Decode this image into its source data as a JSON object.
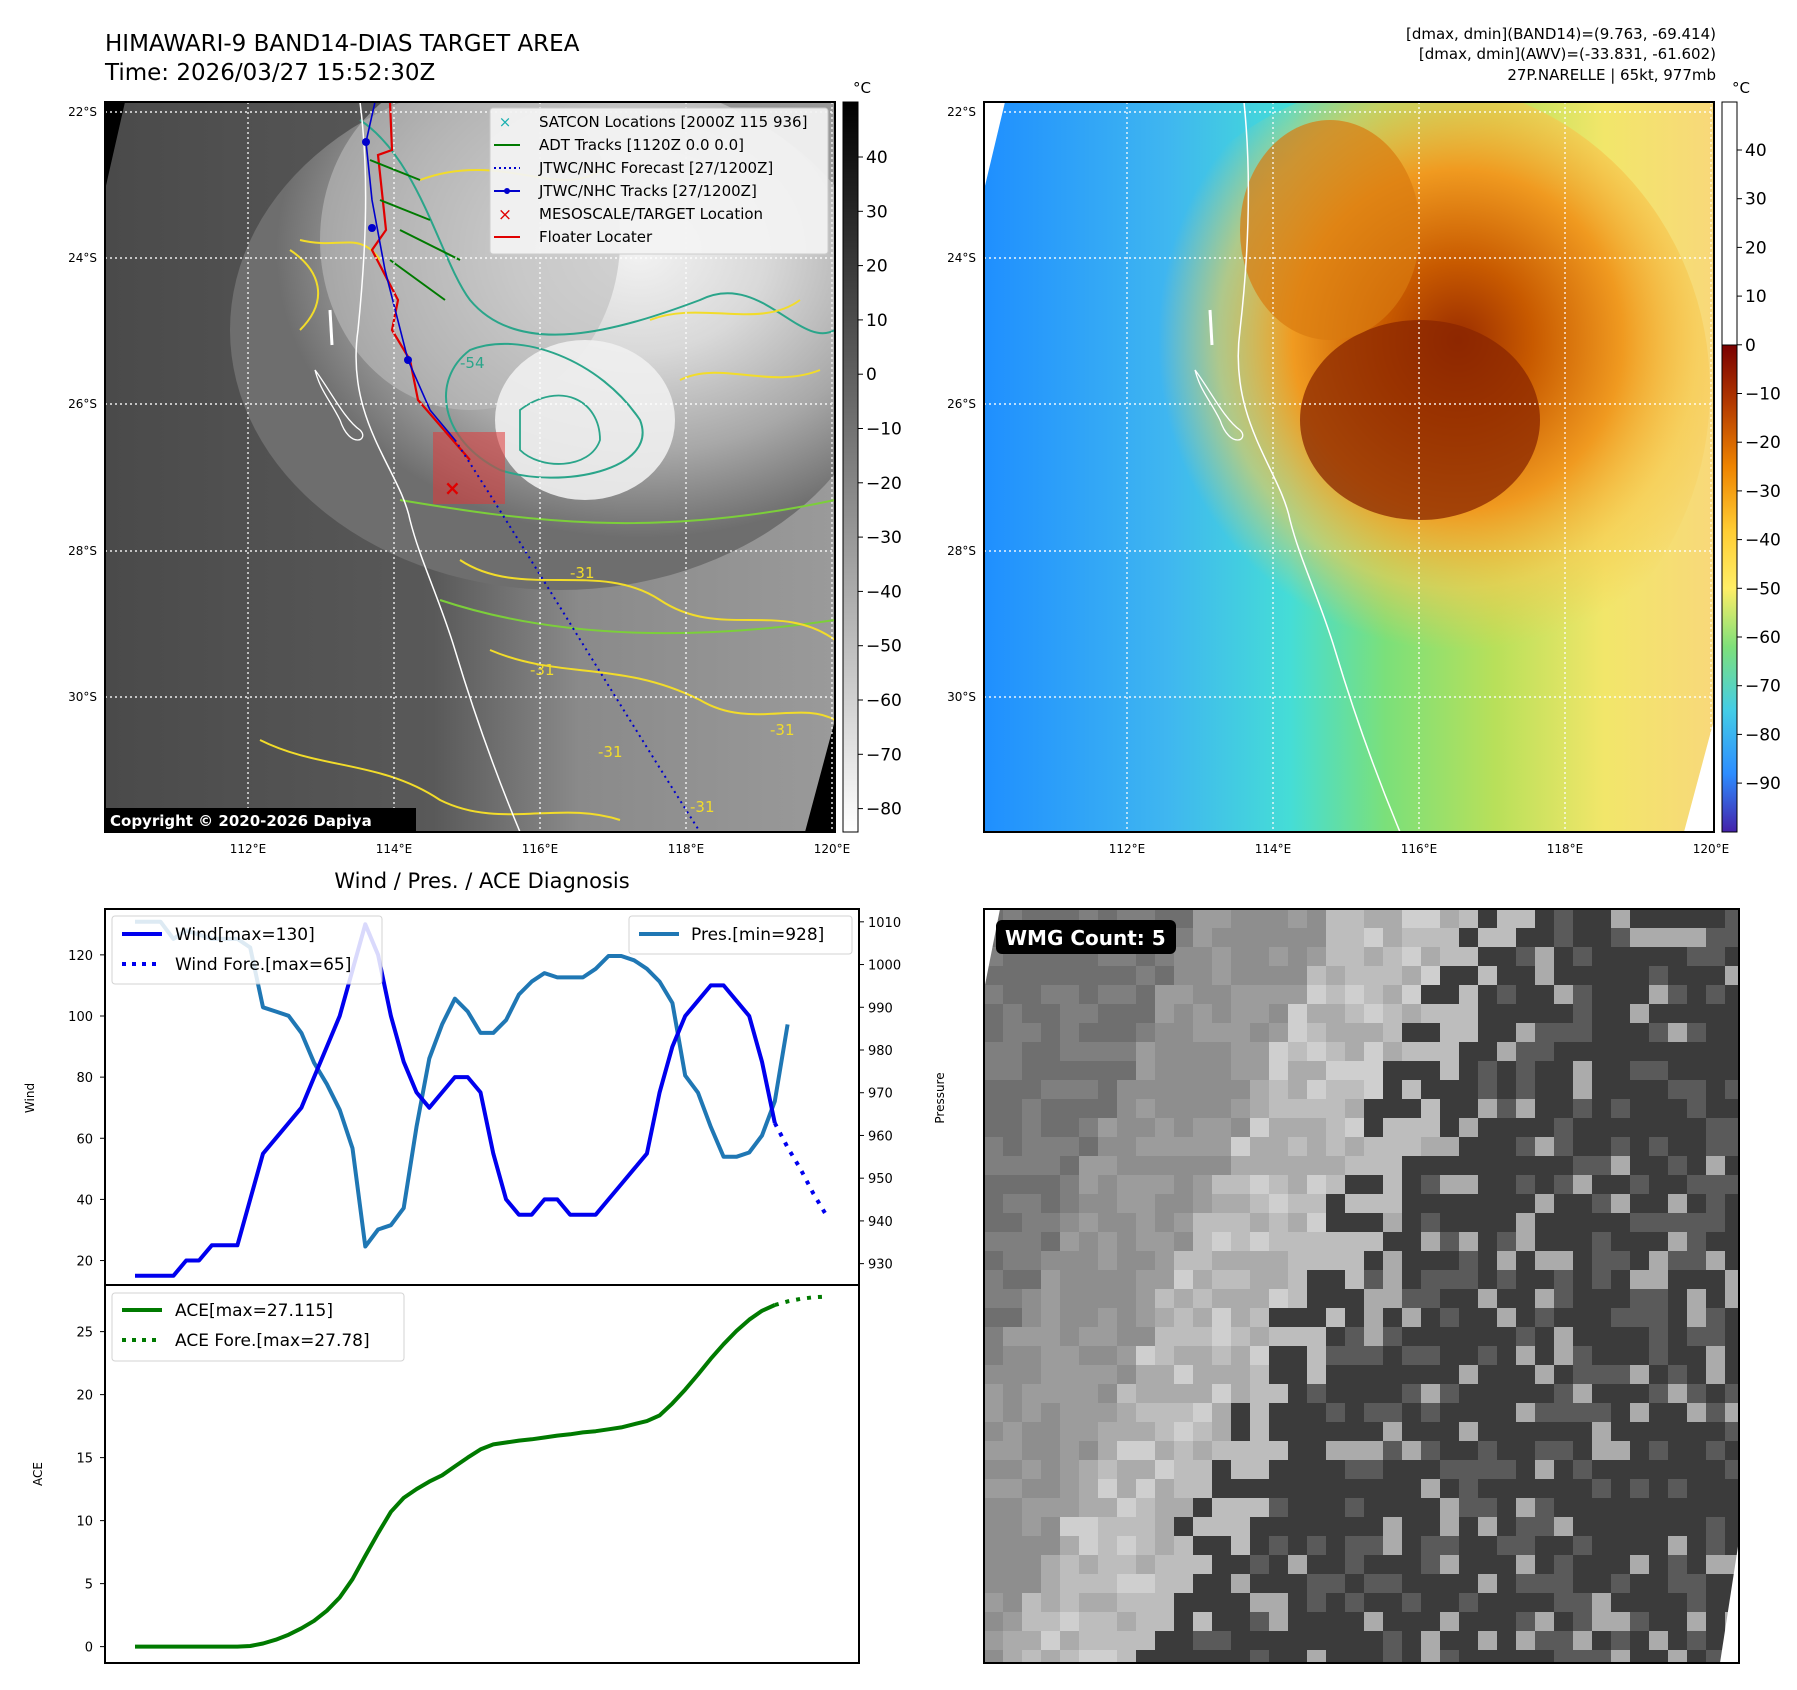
{
  "header": {
    "title": "HIMAWARI-9 BAND14-DIAS TARGET AREA",
    "time": "Time: 2026/03/27 15:52:30Z",
    "dmax_band14": "[dmax, dmin](BAND14)=(9.763, -69.414)",
    "dmax_awv": "[dmax, dmin](AWV)=(-33.831, -61.602)",
    "storm_info": "27P.NARELLE | 65kt, 977mb"
  },
  "map": {
    "lat_labels": [
      "22°S",
      "24°S",
      "26°S",
      "28°S",
      "30°S"
    ],
    "lon_labels": [
      "112°E",
      "114°E",
      "116°E",
      "118°E",
      "120°E"
    ],
    "unit": "°C",
    "copyright": "Copyright © 2020-2026 Dapiya",
    "legend": [
      {
        "label": "SATCON Locations [2000Z 115 936]",
        "color": "#1ab0b0"
      },
      {
        "label": "ADT Tracks [1120Z 0.0 0.0]",
        "color": "#007a00"
      },
      {
        "label": "JTWC/NHC Forecast [27/1200Z]",
        "color": "#0000cc"
      },
      {
        "label": "JTWC/NHC Tracks [27/1200Z]",
        "color": "#0000cc"
      },
      {
        "label": "MESOSCALE/TARGET Location",
        "color": "#e00000"
      },
      {
        "label": "Floater Locater",
        "color": "#e00000"
      }
    ],
    "contour_labels": [
      "-54",
      "-31",
      "-31",
      "-31",
      "-31",
      "-31"
    ]
  },
  "colorbar_gray": {
    "ticks": [
      "40",
      "30",
      "20",
      "10",
      "0",
      "−10",
      "−20",
      "−30",
      "−40",
      "−50",
      "−60",
      "−70",
      "−80"
    ]
  },
  "colorbar_awv": {
    "ticks": [
      "40",
      "30",
      "20",
      "10",
      "0",
      "−10",
      "−20",
      "−30",
      "−40",
      "−50",
      "−60",
      "−70",
      "−80",
      "−90"
    ]
  },
  "wmg": {
    "label": "WMG Count: 5"
  },
  "chart_data": [
    {
      "type": "line",
      "title": "Wind / Pres. / ACE Diagnosis",
      "ylabel": "Wind",
      "ylabel_right": "Pressure",
      "ylim": [
        12,
        135
      ],
      "ylim_right": [
        925,
        1013
      ],
      "yticks": [
        20,
        40,
        60,
        80,
        100,
        120
      ],
      "yticks_right": [
        930,
        940,
        950,
        960,
        970,
        980,
        990,
        1000,
        1010
      ],
      "series": [
        {
          "name": "Wind[max=130]",
          "color": "#0000ee",
          "style": "solid",
          "x": [
            0,
            1,
            2,
            3,
            4,
            5,
            6,
            7,
            8,
            9,
            10,
            11,
            12,
            13,
            14,
            15,
            16,
            17,
            18,
            19,
            20,
            21,
            22,
            23,
            24,
            25,
            26,
            27,
            28,
            29,
            30,
            31,
            32,
            33,
            34,
            35,
            36,
            37,
            38,
            39,
            40,
            41,
            42,
            43,
            44,
            45,
            46,
            47,
            48,
            49,
            50
          ],
          "values": [
            15,
            15,
            15,
            15,
            20,
            20,
            25,
            25,
            25,
            40,
            55,
            60,
            65,
            70,
            80,
            90,
            100,
            115,
            130,
            120,
            100,
            85,
            75,
            70,
            75,
            80,
            80,
            75,
            55,
            40,
            35,
            35,
            40,
            40,
            35,
            35,
            35,
            40,
            45,
            50,
            55,
            75,
            90,
            100,
            105,
            110,
            110,
            105,
            100,
            85,
            65
          ]
        },
        {
          "name": "Wind Fore.[max=65]",
          "color": "#0000ee",
          "style": "dotted",
          "x": [
            50,
            51,
            52,
            53,
            54
          ],
          "values": [
            65,
            57,
            50,
            42,
            35
          ]
        },
        {
          "name": "Pres.[min=928]",
          "color": "#1f77b4",
          "style": "solid",
          "axis": "right",
          "x": [
            0,
            1,
            2,
            3,
            4,
            5,
            6,
            7,
            8,
            9,
            10,
            11,
            12,
            13,
            14,
            15,
            16,
            17,
            18,
            19,
            20,
            21,
            22,
            23,
            24,
            25,
            26,
            27,
            28,
            29,
            30,
            31,
            32,
            33,
            34,
            35,
            36,
            37,
            38,
            39,
            40,
            41,
            42,
            43,
            44,
            45,
            46,
            47,
            48,
            49,
            50,
            51
          ],
          "values": [
            1010,
            1010,
            1010,
            1006,
            1008,
            1007,
            1006,
            1006,
            1006,
            1004,
            990,
            989,
            988,
            984,
            977,
            972,
            966,
            957,
            934,
            938,
            939,
            943,
            962,
            978,
            986,
            992,
            989,
            984,
            984,
            987,
            993,
            996,
            998,
            997,
            997,
            997,
            999,
            1002,
            1002,
            1001,
            999,
            996,
            991,
            974,
            970,
            962,
            955,
            955,
            956,
            960,
            968,
            986
          ]
        }
      ]
    },
    {
      "type": "line",
      "ylabel": "ACE",
      "ylim": [
        -1.3,
        28.7
      ],
      "yticks": [
        0,
        5,
        10,
        15,
        20,
        25
      ],
      "series": [
        {
          "name": "ACE[max=27.115]",
          "color": "#007a00",
          "style": "solid",
          "x": [
            0,
            1,
            2,
            3,
            4,
            5,
            6,
            7,
            8,
            9,
            10,
            11,
            12,
            13,
            14,
            15,
            16,
            17,
            18,
            19,
            20,
            21,
            22,
            23,
            24,
            25,
            26,
            27,
            28,
            29,
            30,
            31,
            32,
            33,
            34,
            35,
            36,
            37,
            38,
            39,
            40,
            41,
            42,
            43,
            44,
            45,
            46,
            47,
            48,
            49,
            50
          ],
          "values": [
            0,
            0,
            0,
            0,
            0,
            0,
            0,
            0,
            0,
            0.05,
            0.25,
            0.55,
            0.95,
            1.45,
            2.05,
            2.85,
            3.9,
            5.35,
            7.2,
            9.0,
            10.7,
            11.8,
            12.5,
            13.1,
            13.6,
            14.3,
            15.0,
            15.65,
            16.05,
            16.2,
            16.35,
            16.45,
            16.6,
            16.75,
            16.85,
            17.0,
            17.1,
            17.25,
            17.4,
            17.65,
            17.9,
            18.35,
            19.3,
            20.4,
            21.6,
            22.85,
            24.0,
            25.05,
            25.95,
            26.65,
            27.115
          ]
        },
        {
          "name": "ACE Fore.[max=27.78]",
          "color": "#007a00",
          "style": "dotted",
          "x": [
            50,
            51,
            52,
            53,
            54
          ],
          "values": [
            27.115,
            27.4,
            27.6,
            27.72,
            27.78
          ]
        }
      ]
    }
  ]
}
